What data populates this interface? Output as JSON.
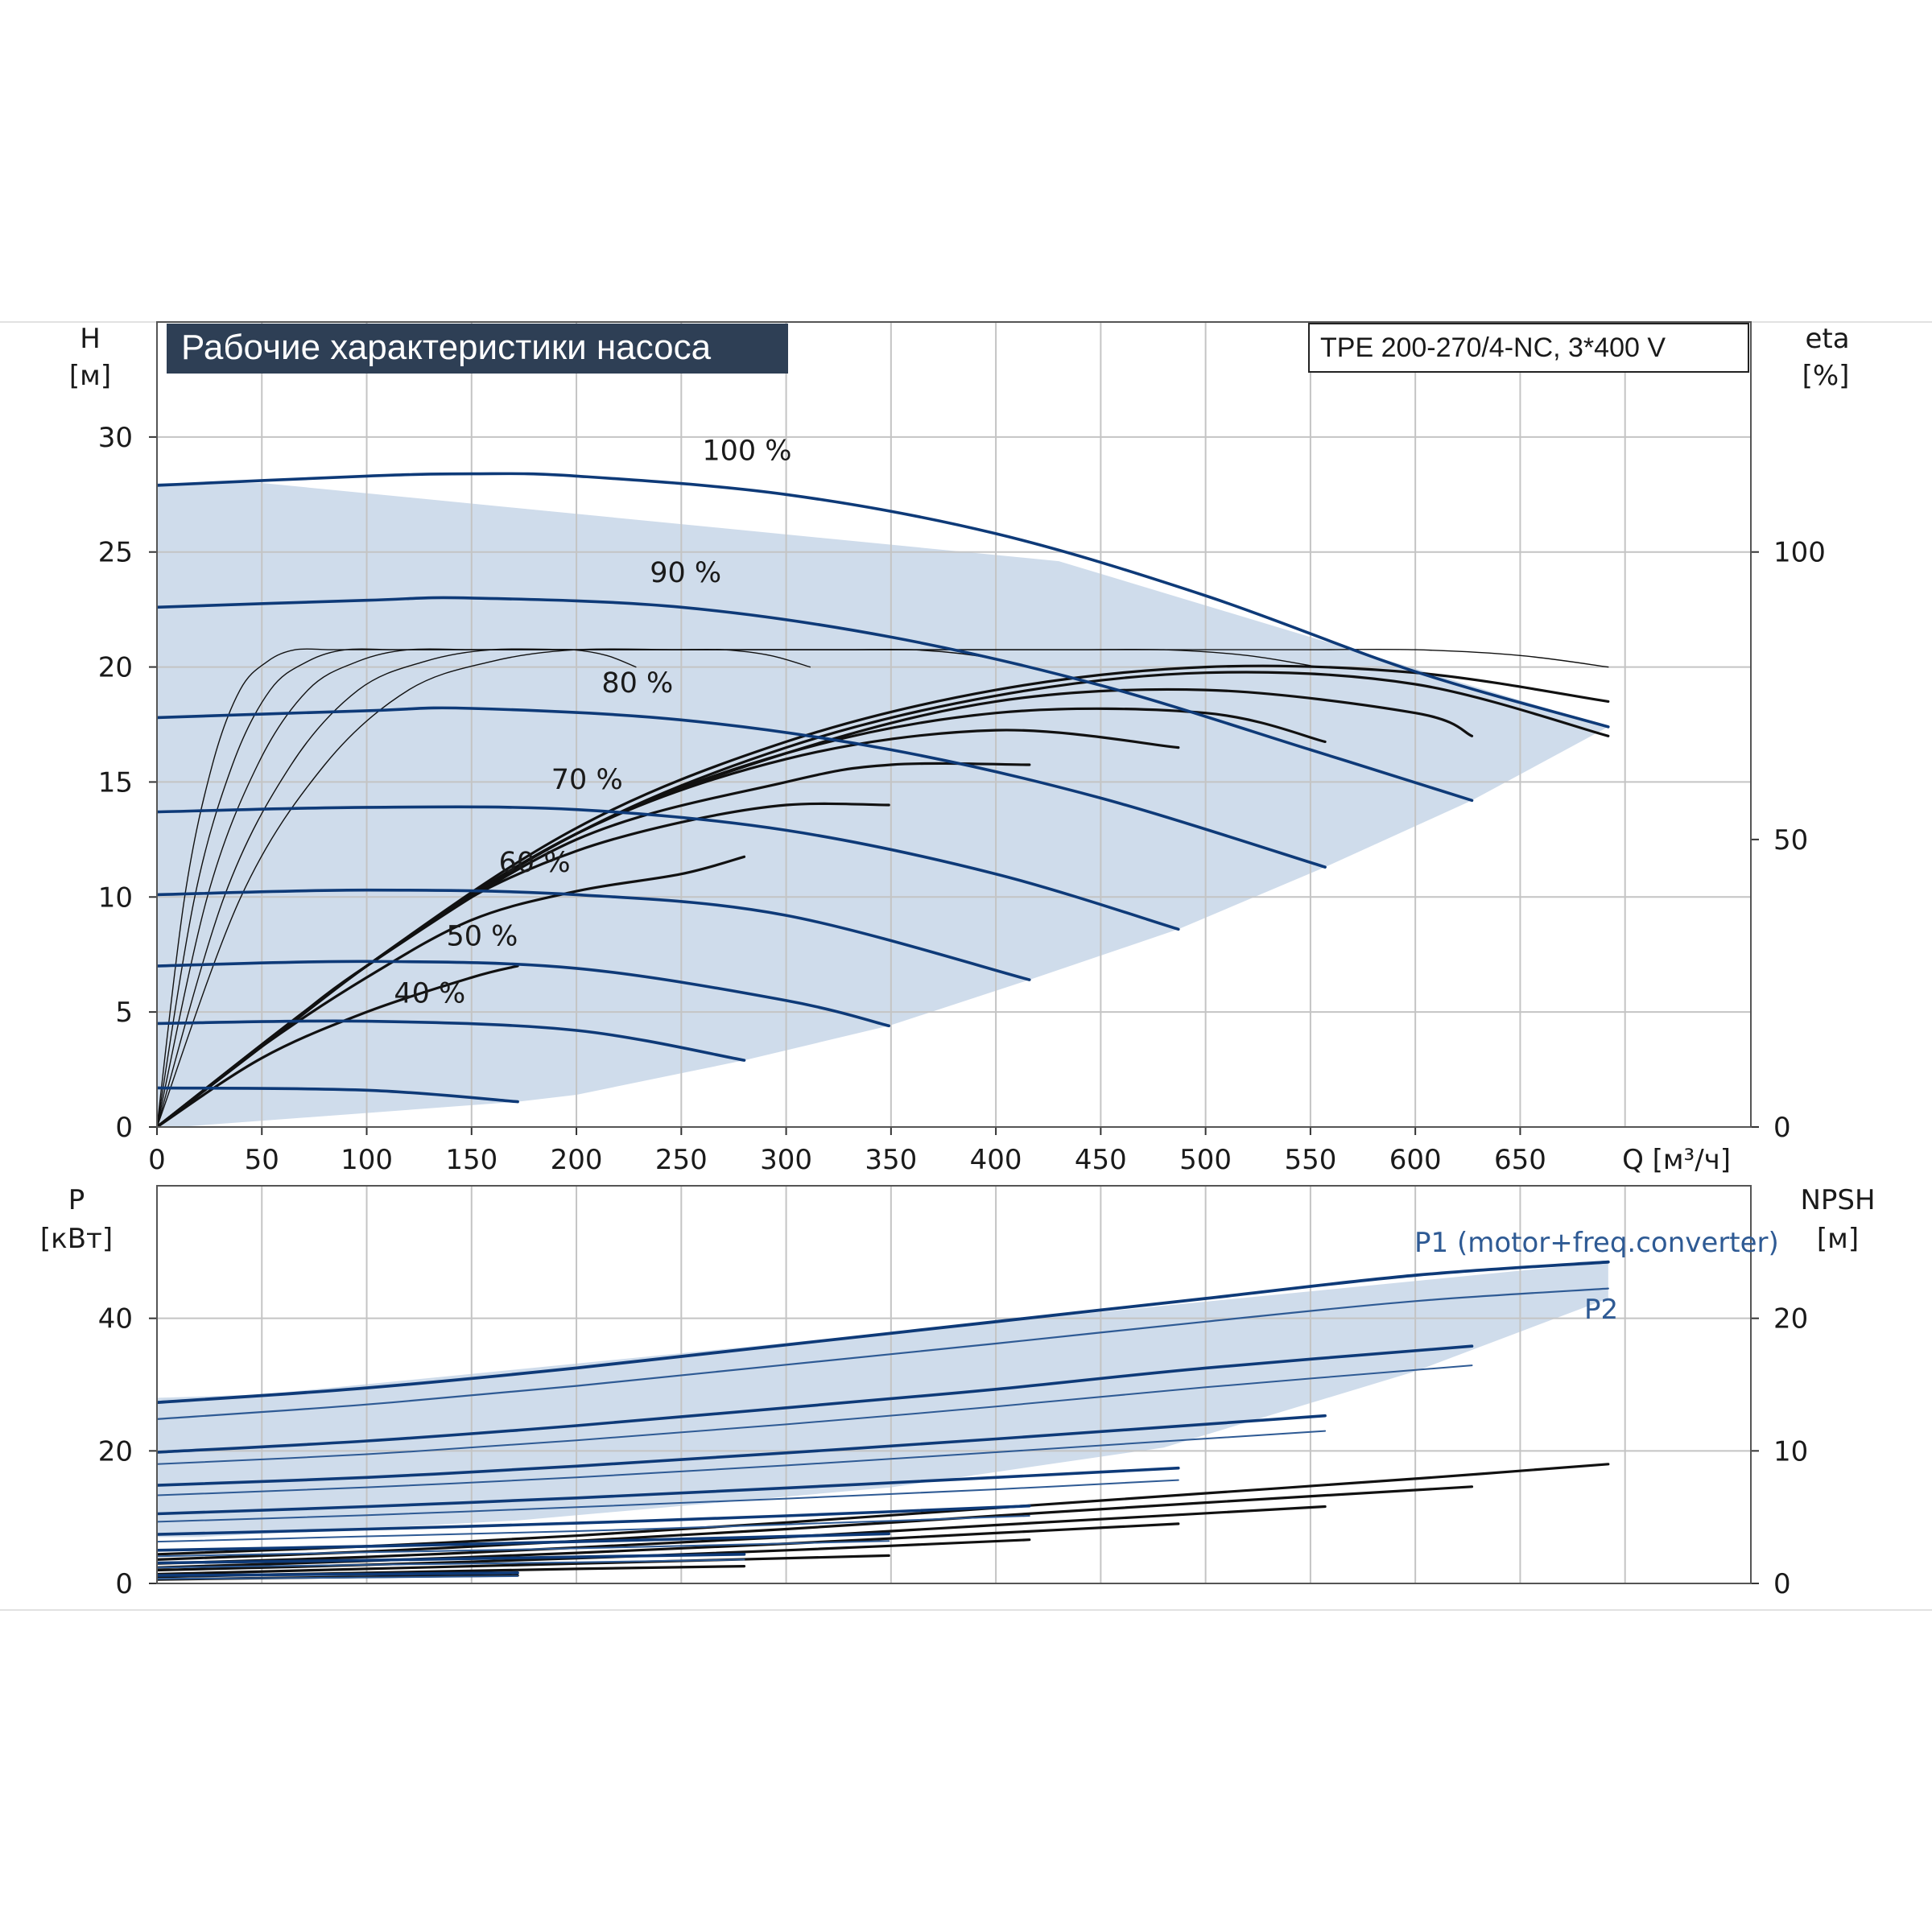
{
  "chart_data": [
    {
      "type": "line",
      "title": "Рабочие характеристики насоса",
      "model": "TPE 200-270/4-NC, 3*400 V",
      "xlabel": "Q [м³/ч]",
      "ylabel_symbol": "H",
      "ylabel_unit": "[м]",
      "y2label_symbol": "eta",
      "y2label_unit": "[%]",
      "xlim": [
        0,
        760
      ],
      "ylim": [
        0,
        35
      ],
      "y2lim": [
        0,
        140
      ],
      "xticks": [
        "0",
        "50",
        "100",
        "150",
        "200",
        "250",
        "300",
        "350",
        "400",
        "450",
        "500",
        "550",
        "600",
        "650"
      ],
      "yticks": [
        "0",
        "5",
        "10",
        "15",
        "20",
        "25",
        "30"
      ],
      "y2ticks": [
        "0",
        "50",
        "100"
      ],
      "grid": true,
      "operating_area": [
        [
          50,
          28
        ],
        [
          430,
          24.6
        ],
        [
          692,
          17.4
        ],
        [
          627,
          14.2
        ],
        [
          557,
          11.3
        ],
        [
          487,
          8.6
        ],
        [
          416,
          6.4
        ],
        [
          349,
          4.4
        ],
        [
          280,
          2.9
        ],
        [
          200,
          1.4
        ],
        [
          172,
          1.1
        ],
        [
          10,
          0
        ],
        [
          0,
          0
        ],
        [
          0,
          28
        ]
      ],
      "series": [
        {
          "name": "100 %",
          "x": [
            0,
            100,
            150,
            200,
            300,
            400,
            500,
            600,
            692
          ],
          "values": [
            27.9,
            28.3,
            28.4,
            28.3,
            27.5,
            25.8,
            23.1,
            19.8,
            17.4
          ]
        },
        {
          "name": "90 %",
          "x": [
            0,
            100,
            150,
            250,
            350,
            450,
            550,
            627
          ],
          "values": [
            22.6,
            22.9,
            23.0,
            22.6,
            21.3,
            19.2,
            16.4,
            14.2
          ]
        },
        {
          "name": "80 %",
          "x": [
            0,
            100,
            150,
            250,
            350,
            450,
            557
          ],
          "values": [
            17.8,
            18.1,
            18.2,
            17.7,
            16.4,
            14.3,
            11.3
          ]
        },
        {
          "name": "70 %",
          "x": [
            0,
            100,
            200,
            300,
            400,
            487
          ],
          "values": [
            13.7,
            13.9,
            13.8,
            12.9,
            11.0,
            8.6
          ]
        },
        {
          "name": "60 %",
          "x": [
            0,
            100,
            200,
            300,
            416
          ],
          "values": [
            10.1,
            10.3,
            10.1,
            9.2,
            6.4
          ]
        },
        {
          "name": "50 %",
          "x": [
            0,
            100,
            200,
            300,
            349
          ],
          "values": [
            7.0,
            7.2,
            6.9,
            5.5,
            4.4
          ]
        },
        {
          "name": "40 %",
          "x": [
            0,
            100,
            200,
            280
          ],
          "values": [
            4.5,
            4.6,
            4.2,
            2.9
          ]
        },
        {
          "name": "",
          "x": [
            0,
            100,
            172
          ],
          "values": [
            1.7,
            1.6,
            1.1
          ]
        }
      ],
      "efficiency_series": [
        {
          "x": [
            0,
            50,
            100,
            150,
            172
          ],
          "values": [
            0,
            12,
            20,
            26,
            28
          ]
        },
        {
          "x": [
            0,
            50,
            100,
            150,
            200,
            250,
            280
          ],
          "values": [
            0,
            14,
            26,
            36,
            41,
            44,
            47
          ]
        },
        {
          "x": [
            0,
            50,
            100,
            150,
            200,
            250,
            300,
            349
          ],
          "values": [
            0,
            14,
            28,
            40,
            48,
            53,
            56,
            56
          ]
        },
        {
          "x": [
            0,
            50,
            100,
            200,
            300,
            350,
            416
          ],
          "values": [
            0,
            14,
            28,
            50,
            60,
            63,
            63
          ]
        },
        {
          "x": [
            0,
            100,
            200,
            300,
            400,
            487
          ],
          "values": [
            0,
            28,
            51,
            64,
            69,
            66
          ]
        },
        {
          "x": [
            0,
            100,
            200,
            300,
            400,
            500,
            557
          ],
          "values": [
            0,
            28,
            51,
            65,
            72,
            72,
            67
          ]
        },
        {
          "x": [
            0,
            100,
            200,
            300,
            400,
            500,
            600,
            627
          ],
          "values": [
            0,
            28,
            51,
            65,
            74,
            76,
            72,
            68
          ]
        },
        {
          "x": [
            0,
            100,
            200,
            300,
            400,
            500,
            600,
            692
          ],
          "values": [
            0,
            28,
            51,
            66,
            75,
            79,
            77,
            68
          ]
        },
        {
          "x": [
            0,
            100,
            200,
            300,
            400,
            500,
            600,
            692
          ],
          "values": [
            0,
            28,
            52,
            67,
            76,
            80,
            79,
            74
          ]
        }
      ],
      "eta_envelope": {
        "x": [
          0,
          40,
          80,
          120,
          160,
          200,
          250,
          300,
          350,
          400,
          450,
          500,
          550,
          600,
          650,
          692
        ],
        "values": [
          0,
          40,
          63,
          76,
          81,
          83,
          83,
          83,
          83,
          83,
          83,
          83,
          83,
          83,
          82,
          80
        ]
      }
    },
    {
      "type": "line",
      "ylabel_symbol": "P",
      "ylabel_unit": "[кВт]",
      "y2label_symbol": "NPSH",
      "y2label_unit": "[м]",
      "xlim": [
        0,
        760
      ],
      "ylim": [
        0,
        60
      ],
      "y2lim": [
        0,
        30
      ],
      "yticks": [
        "0",
        "20",
        "40"
      ],
      "y2ticks": [
        "0",
        "10",
        "20"
      ],
      "grid": true,
      "operating_area": [
        [
          50,
          28.5
        ],
        [
          692,
          48.5
        ],
        [
          692,
          43
        ],
        [
          600,
          32
        ],
        [
          480,
          20.5
        ],
        [
          350,
          14.5
        ],
        [
          172,
          9.5
        ],
        [
          20,
          7
        ],
        [
          0,
          7
        ],
        [
          0,
          28
        ]
      ],
      "p1_label": "P1 (motor+freq.converter)",
      "p2_label": "P2",
      "series": [
        {
          "name": "P1",
          "x": [
            0,
            100,
            200,
            300,
            400,
            500,
            600,
            692
          ],
          "values": [
            27.3,
            29.5,
            32.5,
            36,
            39.5,
            43,
            46.5,
            48.5
          ]
        },
        {
          "name": "P2",
          "x": [
            0,
            100,
            200,
            300,
            400,
            500,
            600,
            692
          ],
          "values": [
            24.8,
            27,
            29.8,
            33,
            36.2,
            39.5,
            42.6,
            44.5
          ]
        }
      ],
      "p1_lower": [
        {
          "x": [
            0,
            100,
            200,
            300,
            400,
            500,
            627
          ],
          "values": [
            19.8,
            21.5,
            23.8,
            26.5,
            29.3,
            32.5,
            35.8
          ]
        },
        {
          "x": [
            0,
            100,
            200,
            300,
            400,
            557
          ],
          "values": [
            14.8,
            16,
            17.7,
            19.7,
            21.8,
            25.3
          ]
        },
        {
          "x": [
            0,
            100,
            200,
            300,
            400,
            487
          ],
          "values": [
            10.5,
            11.6,
            12.9,
            14.4,
            16,
            17.4
          ]
        },
        {
          "x": [
            0,
            100,
            200,
            300,
            416
          ],
          "values": [
            7.4,
            8.2,
            9.1,
            10.2,
            11.7
          ]
        },
        {
          "x": [
            0,
            100,
            200,
            349
          ],
          "values": [
            5.0,
            5.6,
            6.3,
            7.5
          ]
        },
        {
          "x": [
            0,
            100,
            200,
            280
          ],
          "values": [
            3.1,
            3.5,
            4.0,
            4.4
          ]
        },
        {
          "x": [
            0,
            100,
            172
          ],
          "values": [
            1.2,
            1.4,
            1.6
          ]
        }
      ],
      "p2_lower": [
        {
          "x": [
            0,
            100,
            200,
            300,
            400,
            500,
            627
          ],
          "values": [
            18,
            19.5,
            21.6,
            24,
            26.7,
            29.6,
            32.9
          ]
        },
        {
          "x": [
            0,
            100,
            200,
            300,
            400,
            557
          ],
          "values": [
            13.3,
            14.5,
            16,
            17.8,
            19.8,
            23
          ]
        },
        {
          "x": [
            0,
            100,
            200,
            300,
            400,
            487
          ],
          "values": [
            9.3,
            10.3,
            11.5,
            12.8,
            14.2,
            15.6
          ]
        },
        {
          "x": [
            0,
            100,
            200,
            300,
            416
          ],
          "values": [
            6.3,
            7.1,
            7.9,
            8.9,
            10.2
          ]
        },
        {
          "x": [
            0,
            100,
            200,
            349
          ],
          "values": [
            4.1,
            4.7,
            5.3,
            6.4
          ]
        },
        {
          "x": [
            0,
            100,
            200,
            280
          ],
          "values": [
            2.4,
            2.8,
            3.2,
            3.6
          ]
        },
        {
          "x": [
            0,
            100,
            172
          ],
          "values": [
            0.7,
            0.9,
            1.1
          ]
        }
      ],
      "npsh_series": [
        {
          "x": [
            0,
            100,
            200,
            300,
            400,
            500,
            600,
            692
          ],
          "values": [
            2.2,
            2.8,
            3.6,
            4.6,
            5.7,
            6.8,
            7.9,
            9.0
          ]
        },
        {
          "x": [
            0,
            100,
            200,
            300,
            400,
            500,
            627
          ],
          "values": [
            1.8,
            2.4,
            3.2,
            4.1,
            5.1,
            6.1,
            7.3
          ]
        },
        {
          "x": [
            0,
            100,
            200,
            300,
            400,
            557
          ],
          "values": [
            1.5,
            2.0,
            2.7,
            3.5,
            4.4,
            5.8
          ]
        },
        {
          "x": [
            0,
            100,
            200,
            300,
            400,
            487
          ],
          "values": [
            1.2,
            1.7,
            2.3,
            3.0,
            3.8,
            4.5
          ]
        },
        {
          "x": [
            0,
            100,
            200,
            300,
            416
          ],
          "values": [
            1.0,
            1.4,
            1.9,
            2.5,
            3.3
          ]
        },
        {
          "x": [
            0,
            100,
            200,
            349
          ],
          "values": [
            0.7,
            1.1,
            1.5,
            2.1
          ]
        },
        {
          "x": [
            0,
            100,
            200,
            280
          ],
          "values": [
            0.5,
            0.8,
            1.1,
            1.3
          ]
        },
        {
          "x": [
            0,
            100,
            172
          ],
          "values": [
            0.3,
            0.5,
            0.6
          ]
        }
      ]
    }
  ],
  "colors": {
    "title_bg": "#2e3f55",
    "title_fg": "#ffffff",
    "head_curve": "#0e3a78",
    "power_curve": "#0e3a78",
    "p2_curve": "#2e5a94",
    "eta_curve": "#111111",
    "npsh_curve": "#111111",
    "area_fill": "#cfdceb",
    "left_area_fill": "#eaf3fb"
  }
}
